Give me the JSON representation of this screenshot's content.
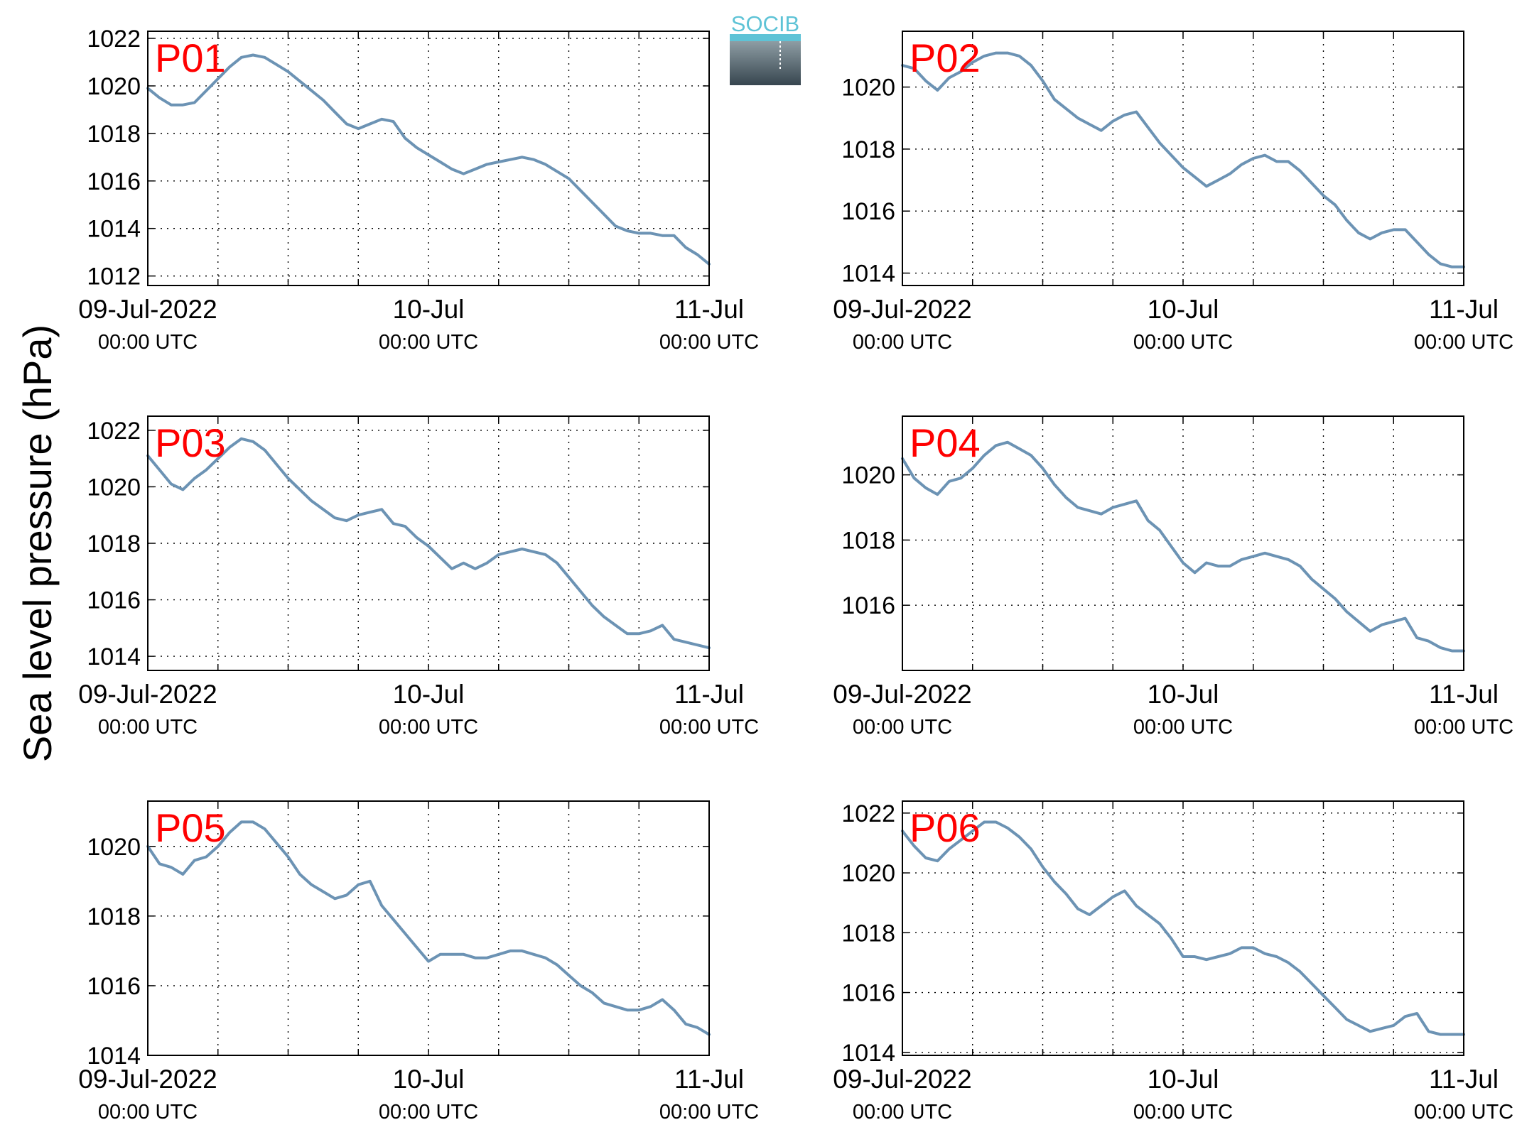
{
  "figure": {
    "ylabel": "Sea level pressure (hPa)",
    "line_color": "#6c93b4",
    "label_color": "#ff0000",
    "logo_text": "SOCIB"
  },
  "chart_data": [
    {
      "type": "line",
      "label": "P01",
      "x_start": "09-Jul-2022 00:00 UTC",
      "x_end": "11-Jul-2022 00:00 UTC",
      "xticks": [
        {
          "line1": "09-Jul-2022",
          "line2": "00:00 UTC"
        },
        {
          "line1": "10-Jul",
          "line2": "00:00 UTC"
        },
        {
          "line1": "11-Jul",
          "line2": "00:00 UTC"
        }
      ],
      "yticks": [
        "1012",
        "1014",
        "1016",
        "1018",
        "1020",
        "1022"
      ],
      "ylim": [
        1011.6,
        1022.3
      ],
      "grid": true,
      "series": [
        {
          "x_hours": [
            0,
            1,
            2,
            3,
            4,
            5,
            6,
            7,
            8,
            9,
            10,
            11,
            12,
            13,
            14,
            15,
            16,
            17,
            18,
            19,
            20,
            21,
            22,
            23,
            24,
            25,
            26,
            27,
            28,
            29,
            30,
            31,
            32,
            33,
            34,
            35,
            36,
            37,
            38,
            39,
            40,
            41,
            42,
            43,
            44,
            45,
            46,
            47,
            48
          ],
          "values": [
            1019.9,
            1019.5,
            1019.2,
            1019.2,
            1019.3,
            1019.8,
            1020.3,
            1020.8,
            1021.2,
            1021.3,
            1021.2,
            1020.9,
            1020.6,
            1020.2,
            1019.8,
            1019.4,
            1018.9,
            1018.4,
            1018.2,
            1018.4,
            1018.6,
            1018.5,
            1017.8,
            1017.4,
            1017.1,
            1016.8,
            1016.5,
            1016.3,
            1016.5,
            1016.7,
            1016.8,
            1016.9,
            1017.0,
            1016.9,
            1016.7,
            1016.4,
            1016.1,
            1015.6,
            1015.1,
            1014.6,
            1014.1,
            1013.9,
            1013.8,
            1013.8,
            1013.7,
            1013.7,
            1013.2,
            1012.9,
            1012.5
          ]
        }
      ]
    },
    {
      "type": "line",
      "label": "P02",
      "x_start": "09-Jul-2022 00:00 UTC",
      "x_end": "11-Jul-2022 00:00 UTC",
      "xticks": [
        {
          "line1": "09-Jul-2022",
          "line2": "00:00 UTC"
        },
        {
          "line1": "10-Jul",
          "line2": "00:00 UTC"
        },
        {
          "line1": "11-Jul",
          "line2": "00:00 UTC"
        }
      ],
      "yticks": [
        "1014",
        "1016",
        "1018",
        "1020"
      ],
      "ylim": [
        1013.6,
        1021.8
      ],
      "grid": true,
      "series": [
        {
          "x_hours": [
            0,
            1,
            2,
            3,
            4,
            5,
            6,
            7,
            8,
            9,
            10,
            11,
            12,
            13,
            14,
            15,
            16,
            17,
            18,
            19,
            20,
            21,
            22,
            23,
            24,
            25,
            26,
            27,
            28,
            29,
            30,
            31,
            32,
            33,
            34,
            35,
            36,
            37,
            38,
            39,
            40,
            41,
            42,
            43,
            44,
            45,
            46,
            47,
            48
          ],
          "values": [
            1020.7,
            1020.6,
            1020.2,
            1019.9,
            1020.3,
            1020.5,
            1020.8,
            1021.0,
            1021.1,
            1021.1,
            1021.0,
            1020.7,
            1020.2,
            1019.6,
            1019.3,
            1019.0,
            1018.8,
            1018.6,
            1018.9,
            1019.1,
            1019.2,
            1018.7,
            1018.2,
            1017.8,
            1017.4,
            1017.1,
            1016.8,
            1017.0,
            1017.2,
            1017.5,
            1017.7,
            1017.8,
            1017.6,
            1017.6,
            1017.3,
            1016.9,
            1016.5,
            1016.2,
            1015.7,
            1015.3,
            1015.1,
            1015.3,
            1015.4,
            1015.4,
            1015.0,
            1014.6,
            1014.3,
            1014.2,
            1014.2
          ]
        }
      ]
    },
    {
      "type": "line",
      "label": "P03",
      "x_start": "09-Jul-2022 00:00 UTC",
      "x_end": "11-Jul-2022 00:00 UTC",
      "xticks": [
        {
          "line1": "09-Jul-2022",
          "line2": "00:00 UTC"
        },
        {
          "line1": "10-Jul",
          "line2": "00:00 UTC"
        },
        {
          "line1": "11-Jul",
          "line2": "00:00 UTC"
        }
      ],
      "yticks": [
        "1014",
        "1016",
        "1018",
        "1020",
        "1022"
      ],
      "ylim": [
        1013.5,
        1022.5
      ],
      "grid": true,
      "series": [
        {
          "x_hours": [
            0,
            1,
            2,
            3,
            4,
            5,
            6,
            7,
            8,
            9,
            10,
            11,
            12,
            13,
            14,
            15,
            16,
            17,
            18,
            19,
            20,
            21,
            22,
            23,
            24,
            25,
            26,
            27,
            28,
            29,
            30,
            31,
            32,
            33,
            34,
            35,
            36,
            37,
            38,
            39,
            40,
            41,
            42,
            43,
            44,
            45,
            46,
            47,
            48
          ],
          "values": [
            1021.1,
            1020.6,
            1020.1,
            1019.9,
            1020.3,
            1020.6,
            1021.0,
            1021.4,
            1021.7,
            1021.6,
            1021.3,
            1020.8,
            1020.3,
            1019.9,
            1019.5,
            1019.2,
            1018.9,
            1018.8,
            1019.0,
            1019.1,
            1019.2,
            1018.7,
            1018.6,
            1018.2,
            1017.9,
            1017.5,
            1017.1,
            1017.3,
            1017.1,
            1017.3,
            1017.6,
            1017.7,
            1017.8,
            1017.7,
            1017.6,
            1017.3,
            1016.8,
            1016.3,
            1015.8,
            1015.4,
            1015.1,
            1014.8,
            1014.8,
            1014.9,
            1015.1,
            1014.6,
            1014.5,
            1014.4,
            1014.3
          ]
        }
      ]
    },
    {
      "type": "line",
      "label": "P04",
      "x_start": "09-Jul-2022 00:00 UTC",
      "x_end": "11-Jul-2022 00:00 UTC",
      "xticks": [
        {
          "line1": "09-Jul-2022",
          "line2": "00:00 UTC"
        },
        {
          "line1": "10-Jul",
          "line2": "00:00 UTC"
        },
        {
          "line1": "11-Jul",
          "line2": "00:00 UTC"
        }
      ],
      "yticks": [
        "1016",
        "1018",
        "1020"
      ],
      "ylim": [
        1014.0,
        1021.8
      ],
      "grid": true,
      "series": [
        {
          "x_hours": [
            0,
            1,
            2,
            3,
            4,
            5,
            6,
            7,
            8,
            9,
            10,
            11,
            12,
            13,
            14,
            15,
            16,
            17,
            18,
            19,
            20,
            21,
            22,
            23,
            24,
            25,
            26,
            27,
            28,
            29,
            30,
            31,
            32,
            33,
            34,
            35,
            36,
            37,
            38,
            39,
            40,
            41,
            42,
            43,
            44,
            45,
            46,
            47,
            48
          ],
          "values": [
            1020.5,
            1019.9,
            1019.6,
            1019.4,
            1019.8,
            1019.9,
            1020.2,
            1020.6,
            1020.9,
            1021.0,
            1020.8,
            1020.6,
            1020.2,
            1019.7,
            1019.3,
            1019.0,
            1018.9,
            1018.8,
            1019.0,
            1019.1,
            1019.2,
            1018.6,
            1018.3,
            1017.8,
            1017.3,
            1017.0,
            1017.3,
            1017.2,
            1017.2,
            1017.4,
            1017.5,
            1017.6,
            1017.5,
            1017.4,
            1017.2,
            1016.8,
            1016.5,
            1016.2,
            1015.8,
            1015.5,
            1015.2,
            1015.4,
            1015.5,
            1015.6,
            1015.0,
            1014.9,
            1014.7,
            1014.6,
            1014.6
          ]
        }
      ]
    },
    {
      "type": "line",
      "label": "P05",
      "x_start": "09-Jul-2022 00:00 UTC",
      "x_end": "11-Jul-2022 00:00 UTC",
      "xticks": [
        {
          "line1": "09-Jul-2022",
          "line2": "00:00 UTC"
        },
        {
          "line1": "10-Jul",
          "line2": "00:00 UTC"
        },
        {
          "line1": "11-Jul",
          "line2": "00:00 UTC"
        }
      ],
      "yticks": [
        "1014",
        "1016",
        "1018",
        "1020"
      ],
      "ylim": [
        1014.0,
        1021.3
      ],
      "grid": true,
      "series": [
        {
          "x_hours": [
            0,
            1,
            2,
            3,
            4,
            5,
            6,
            7,
            8,
            9,
            10,
            11,
            12,
            13,
            14,
            15,
            16,
            17,
            18,
            19,
            20,
            21,
            22,
            23,
            24,
            25,
            26,
            27,
            28,
            29,
            30,
            31,
            32,
            33,
            34,
            35,
            36,
            37,
            38,
            39,
            40,
            41,
            42,
            43,
            44,
            45,
            46,
            47,
            48
          ],
          "values": [
            1020.0,
            1019.5,
            1019.4,
            1019.2,
            1019.6,
            1019.7,
            1020.0,
            1020.4,
            1020.7,
            1020.7,
            1020.5,
            1020.1,
            1019.7,
            1019.2,
            1018.9,
            1018.7,
            1018.5,
            1018.6,
            1018.9,
            1019.0,
            1018.3,
            1017.9,
            1017.5,
            1017.1,
            1016.7,
            1016.9,
            1016.9,
            1016.9,
            1016.8,
            1016.8,
            1016.9,
            1017.0,
            1017.0,
            1016.9,
            1016.8,
            1016.6,
            1016.3,
            1016.0,
            1015.8,
            1015.5,
            1015.4,
            1015.3,
            1015.3,
            1015.4,
            1015.6,
            1015.3,
            1014.9,
            1014.8,
            1014.6
          ]
        }
      ]
    },
    {
      "type": "line",
      "label": "P06",
      "x_start": "09-Jul-2022 00:00 UTC",
      "x_end": "11-Jul-2022 00:00 UTC",
      "xticks": [
        {
          "line1": "09-Jul-2022",
          "line2": "00:00 UTC"
        },
        {
          "line1": "10-Jul",
          "line2": "00:00 UTC"
        },
        {
          "line1": "11-Jul",
          "line2": "00:00 UTC"
        }
      ],
      "yticks": [
        "1014",
        "1016",
        "1018",
        "1020",
        "1022"
      ],
      "ylim": [
        1013.9,
        1022.4
      ],
      "grid": true,
      "series": [
        {
          "x_hours": [
            0,
            1,
            2,
            3,
            4,
            5,
            6,
            7,
            8,
            9,
            10,
            11,
            12,
            13,
            14,
            15,
            16,
            17,
            18,
            19,
            20,
            21,
            22,
            23,
            24,
            25,
            26,
            27,
            28,
            29,
            30,
            31,
            32,
            33,
            34,
            35,
            36,
            37,
            38,
            39,
            40,
            41,
            42,
            43,
            44,
            45,
            46,
            47,
            48
          ],
          "values": [
            1021.4,
            1020.9,
            1020.5,
            1020.4,
            1020.8,
            1021.1,
            1021.4,
            1021.7,
            1021.7,
            1021.5,
            1021.2,
            1020.8,
            1020.2,
            1019.7,
            1019.3,
            1018.8,
            1018.6,
            1018.9,
            1019.2,
            1019.4,
            1018.9,
            1018.6,
            1018.3,
            1017.8,
            1017.2,
            1017.2,
            1017.1,
            1017.2,
            1017.3,
            1017.5,
            1017.5,
            1017.3,
            1017.2,
            1017.0,
            1016.7,
            1016.3,
            1015.9,
            1015.5,
            1015.1,
            1014.9,
            1014.7,
            1014.8,
            1014.9,
            1015.2,
            1015.3,
            1014.7,
            1014.6,
            1014.6,
            1014.6
          ]
        }
      ]
    }
  ]
}
